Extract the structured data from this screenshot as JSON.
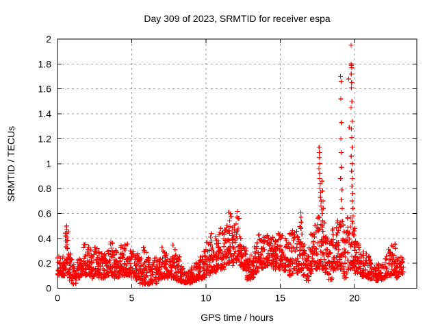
{
  "window": {
    "background": "#ffffff"
  },
  "chart_data": {
    "type": "scatter",
    "title": "Day 309 of 2023, SRMTID for receiver espa",
    "xlabel": "GPS time / hours",
    "ylabel": "SRMTID / TECUs",
    "xlim": [
      0,
      24.2
    ],
    "ylim": [
      0,
      2
    ],
    "xticks": [
      0,
      5,
      10,
      15,
      20
    ],
    "xtick_labels": [
      "0",
      "5",
      "10",
      "15",
      "20"
    ],
    "yticks": [
      0,
      0.2,
      0.4,
      0.6,
      0.8,
      1,
      1.2,
      1.4,
      1.6,
      1.8,
      2
    ],
    "ytick_labels": [
      "0",
      "0.2",
      "0.4",
      "0.6",
      "0.8",
      "1",
      "1.2",
      "1.4",
      "1.6",
      "1.8",
      "2"
    ],
    "grid": {
      "show": true,
      "color": "#9b9b9b",
      "dash": "3 4"
    },
    "axis_color": "#000000",
    "marker": {
      "shape": "plus",
      "size": 7,
      "color": "#ff0000"
    },
    "series_name": "SRMTID",
    "x_unit": "hours",
    "y_unit": "TECUs",
    "data_extent": {
      "x_start": 0.0,
      "x_end": 23.3,
      "y_min": 0.02,
      "y_max": 1.95
    },
    "render_seed": 309,
    "envelope_bins": [
      [
        0.0,
        0.25,
        0.1,
        0.26,
        24
      ],
      [
        0.25,
        0.5,
        0.1,
        0.3,
        24
      ],
      [
        0.5,
        0.8,
        0.12,
        0.5,
        26
      ],
      [
        0.8,
        1.0,
        0.06,
        0.28,
        18
      ],
      [
        1.0,
        1.25,
        0.03,
        0.2,
        20
      ],
      [
        1.25,
        1.5,
        0.08,
        0.26,
        22
      ],
      [
        1.5,
        1.75,
        0.1,
        0.3,
        24
      ],
      [
        1.75,
        2.0,
        0.1,
        0.36,
        24
      ],
      [
        2.0,
        2.25,
        0.1,
        0.34,
        24
      ],
      [
        2.25,
        2.5,
        0.08,
        0.28,
        24
      ],
      [
        2.5,
        2.75,
        0.1,
        0.34,
        24
      ],
      [
        2.75,
        3.0,
        0.08,
        0.3,
        24
      ],
      [
        3.0,
        3.25,
        0.08,
        0.28,
        24
      ],
      [
        3.25,
        3.5,
        0.1,
        0.33,
        24
      ],
      [
        3.5,
        3.75,
        0.1,
        0.38,
        24
      ],
      [
        3.75,
        4.0,
        0.08,
        0.31,
        24
      ],
      [
        4.0,
        4.25,
        0.08,
        0.28,
        24
      ],
      [
        4.25,
        4.5,
        0.1,
        0.36,
        24
      ],
      [
        4.5,
        4.75,
        0.1,
        0.38,
        24
      ],
      [
        4.75,
        5.0,
        0.08,
        0.3,
        24
      ],
      [
        5.0,
        5.25,
        0.09,
        0.3,
        24
      ],
      [
        5.25,
        5.5,
        0.06,
        0.32,
        24
      ],
      [
        5.5,
        5.75,
        0.03,
        0.26,
        24
      ],
      [
        5.75,
        6.0,
        0.03,
        0.35,
        24
      ],
      [
        6.0,
        6.25,
        0.03,
        0.28,
        24
      ],
      [
        6.25,
        6.5,
        0.04,
        0.22,
        24
      ],
      [
        6.5,
        6.75,
        0.04,
        0.25,
        24
      ],
      [
        6.75,
        7.0,
        0.07,
        0.28,
        24
      ],
      [
        7.0,
        7.25,
        0.08,
        0.33,
        24
      ],
      [
        7.25,
        7.5,
        0.08,
        0.3,
        24
      ],
      [
        7.5,
        7.75,
        0.08,
        0.28,
        24
      ],
      [
        7.75,
        8.0,
        0.08,
        0.35,
        24
      ],
      [
        8.0,
        8.25,
        0.06,
        0.26,
        24
      ],
      [
        8.25,
        8.5,
        0.05,
        0.18,
        24
      ],
      [
        8.5,
        8.75,
        0.04,
        0.14,
        24
      ],
      [
        8.75,
        9.0,
        0.04,
        0.15,
        24
      ],
      [
        9.0,
        9.25,
        0.05,
        0.18,
        24
      ],
      [
        9.25,
        9.5,
        0.06,
        0.21,
        24
      ],
      [
        9.5,
        9.75,
        0.07,
        0.25,
        24
      ],
      [
        9.75,
        10.0,
        0.08,
        0.3,
        24
      ],
      [
        10.0,
        10.25,
        0.1,
        0.38,
        24
      ],
      [
        10.25,
        10.5,
        0.12,
        0.45,
        24
      ],
      [
        10.5,
        10.75,
        0.12,
        0.42,
        24
      ],
      [
        10.75,
        11.0,
        0.15,
        0.5,
        24
      ],
      [
        11.0,
        11.25,
        0.15,
        0.46,
        24
      ],
      [
        11.25,
        11.5,
        0.18,
        0.55,
        24
      ],
      [
        11.5,
        11.75,
        0.2,
        0.62,
        24
      ],
      [
        11.75,
        12.0,
        0.18,
        0.56,
        24
      ],
      [
        12.0,
        12.25,
        0.2,
        0.62,
        24
      ],
      [
        12.25,
        12.5,
        0.18,
        0.5,
        24
      ],
      [
        12.5,
        12.75,
        0.14,
        0.36,
        24
      ],
      [
        12.75,
        13.0,
        0.07,
        0.25,
        24
      ],
      [
        13.0,
        13.25,
        0.08,
        0.28,
        24
      ],
      [
        13.25,
        13.5,
        0.12,
        0.4,
        24
      ],
      [
        13.5,
        13.75,
        0.16,
        0.43,
        24
      ],
      [
        13.75,
        14.0,
        0.16,
        0.42,
        24
      ],
      [
        14.0,
        14.25,
        0.18,
        0.45,
        24
      ],
      [
        14.25,
        14.5,
        0.18,
        0.42,
        24
      ],
      [
        14.5,
        14.75,
        0.15,
        0.4,
        24
      ],
      [
        14.75,
        15.0,
        0.15,
        0.45,
        24
      ],
      [
        15.0,
        15.25,
        0.17,
        0.43,
        24
      ],
      [
        15.25,
        15.5,
        0.14,
        0.4,
        24
      ],
      [
        15.5,
        15.75,
        0.1,
        0.45,
        24
      ],
      [
        15.75,
        16.0,
        0.12,
        0.5,
        24
      ],
      [
        16.0,
        16.25,
        0.12,
        0.46,
        24
      ],
      [
        16.25,
        16.5,
        0.14,
        0.55,
        24
      ],
      [
        16.5,
        16.75,
        0.1,
        0.4,
        24
      ],
      [
        16.75,
        17.0,
        0.06,
        0.36,
        24
      ],
      [
        17.0,
        17.25,
        0.12,
        0.45,
        24
      ],
      [
        17.25,
        17.5,
        0.14,
        0.52,
        24
      ],
      [
        17.5,
        17.75,
        0.15,
        0.58,
        24
      ],
      [
        17.75,
        18.0,
        0.15,
        0.55,
        24
      ],
      [
        18.0,
        18.25,
        0.12,
        0.45,
        24
      ],
      [
        18.25,
        18.5,
        0.07,
        0.42,
        24
      ],
      [
        18.5,
        18.75,
        0.14,
        0.5,
        24
      ],
      [
        18.75,
        19.0,
        0.15,
        0.55,
        24
      ],
      [
        19.0,
        19.25,
        0.15,
        0.58,
        24
      ],
      [
        19.25,
        19.5,
        0.08,
        0.46,
        24
      ],
      [
        19.5,
        19.75,
        0.15,
        0.58,
        24
      ],
      [
        19.75,
        20.0,
        0.15,
        0.55,
        24
      ],
      [
        20.0,
        20.25,
        0.12,
        0.48,
        24
      ],
      [
        20.25,
        20.5,
        0.11,
        0.36,
        22
      ],
      [
        20.5,
        20.75,
        0.09,
        0.3,
        20
      ],
      [
        20.75,
        21.0,
        0.08,
        0.28,
        20
      ],
      [
        21.0,
        21.25,
        0.07,
        0.25,
        20
      ],
      [
        21.25,
        21.5,
        0.06,
        0.22,
        18
      ],
      [
        21.5,
        21.75,
        0.06,
        0.2,
        18
      ],
      [
        21.75,
        22.0,
        0.07,
        0.22,
        18
      ],
      [
        22.0,
        22.25,
        0.08,
        0.26,
        20
      ],
      [
        22.25,
        22.5,
        0.1,
        0.34,
        22
      ],
      [
        22.5,
        22.75,
        0.11,
        0.39,
        22
      ],
      [
        22.75,
        23.0,
        0.08,
        0.28,
        22
      ],
      [
        23.0,
        23.3,
        0.1,
        0.26,
        24
      ]
    ],
    "peak_points": [
      [
        0.62,
        0.5
      ],
      [
        0.62,
        0.47
      ],
      [
        0.63,
        0.44
      ],
      [
        0.64,
        0.41
      ],
      [
        0.63,
        0.38
      ],
      [
        0.65,
        0.35
      ],
      [
        0.66,
        0.32
      ],
      [
        16.38,
        0.61
      ],
      [
        16.4,
        0.57
      ],
      [
        16.42,
        0.53
      ],
      [
        16.39,
        0.49
      ],
      [
        17.62,
        1.13
      ],
      [
        17.64,
        1.09
      ],
      [
        17.63,
        1.05
      ],
      [
        17.66,
        1.0
      ],
      [
        17.61,
        0.96
      ],
      [
        17.67,
        0.92
      ],
      [
        17.65,
        0.88
      ],
      [
        17.7,
        0.84
      ],
      [
        17.68,
        0.8
      ],
      [
        17.73,
        0.77
      ],
      [
        17.71,
        0.73
      ],
      [
        17.76,
        0.7
      ],
      [
        17.74,
        0.66
      ],
      [
        17.79,
        0.63
      ],
      [
        17.82,
        0.86
      ],
      [
        17.85,
        0.78
      ],
      [
        17.88,
        0.7
      ],
      [
        17.9,
        0.64
      ],
      [
        17.83,
        0.6
      ],
      [
        19.06,
        1.7
      ],
      [
        19.1,
        1.66
      ],
      [
        19.08,
        1.52
      ],
      [
        19.12,
        1.33
      ],
      [
        19.09,
        1.2
      ],
      [
        19.11,
        1.09
      ],
      [
        19.14,
        0.97
      ],
      [
        19.07,
        0.88
      ],
      [
        19.16,
        0.79
      ],
      [
        19.12,
        0.71
      ],
      [
        19.18,
        0.64
      ],
      [
        19.62,
        1.68
      ],
      [
        19.65,
        1.29
      ],
      [
        19.78,
        1.95
      ],
      [
        19.77,
        1.8
      ],
      [
        19.8,
        1.79
      ],
      [
        19.82,
        1.77
      ],
      [
        19.79,
        1.72
      ],
      [
        19.81,
        1.65
      ],
      [
        19.8,
        1.61
      ],
      [
        19.83,
        1.5
      ],
      [
        19.78,
        1.45
      ],
      [
        19.84,
        1.34
      ],
      [
        19.8,
        1.28
      ],
      [
        19.82,
        1.21
      ],
      [
        19.86,
        1.13
      ],
      [
        19.79,
        1.06
      ],
      [
        19.85,
        1.0
      ],
      [
        19.81,
        0.94
      ],
      [
        19.87,
        0.88
      ],
      [
        19.83,
        0.82
      ],
      [
        19.88,
        0.76
      ],
      [
        19.85,
        0.7
      ],
      [
        19.9,
        0.64
      ],
      [
        19.92,
        0.58
      ],
      [
        19.89,
        0.52
      ],
      [
        19.94,
        0.47
      ]
    ]
  }
}
